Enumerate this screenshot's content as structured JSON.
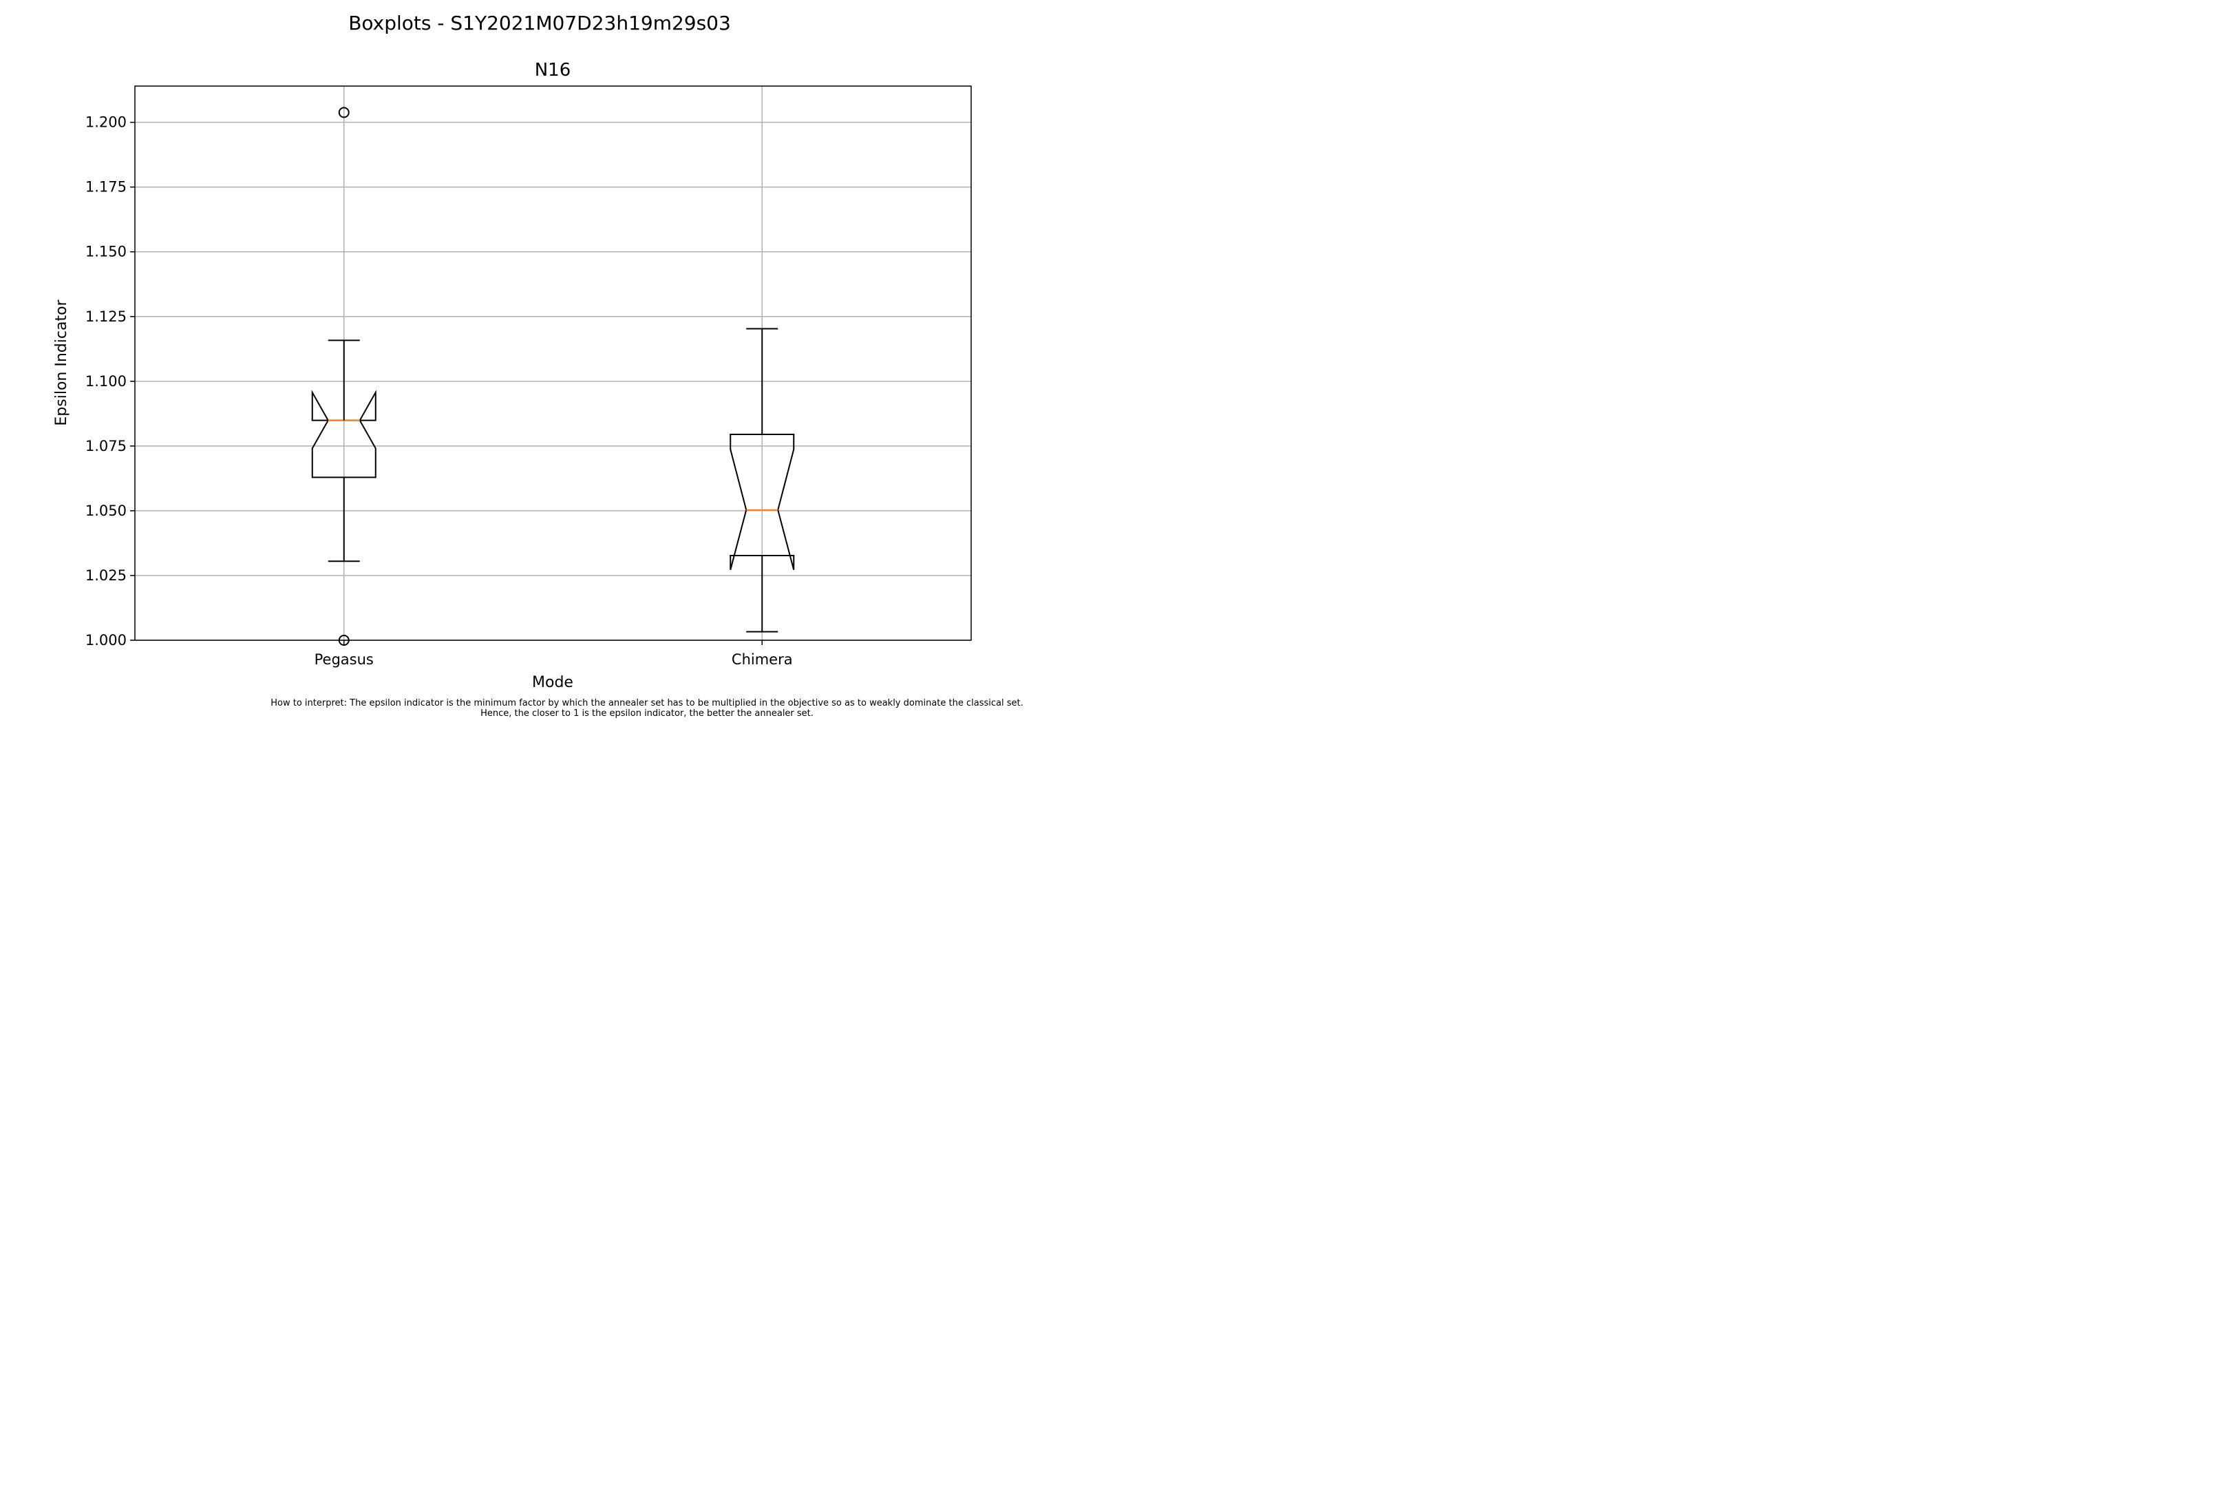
{
  "figure": {
    "suptitle": "Boxplots - S1Y2021M07D23h19m29s03",
    "note_line1": "How to interpret: The epsilon indicator is the minimum factor by which the annealer set has to be multiplied in the objective so as to weakly dominate the classical set.",
    "note_line2": "Hence, the closer to 1 is the epsilon indicator, the better the annealer set."
  },
  "chart_data": {
    "type": "boxplot",
    "title": "N16",
    "xlabel": "Mode",
    "ylabel": "Epsilon Indicator",
    "ylim": [
      1.0,
      1.214
    ],
    "yticks": [
      1.0,
      1.025,
      1.05,
      1.075,
      1.1,
      1.125,
      1.15,
      1.175,
      1.2
    ],
    "ytick_labels": [
      "1.000",
      "1.025",
      "1.050",
      "1.075",
      "1.100",
      "1.125",
      "1.150",
      "1.175",
      "1.200"
    ],
    "grid": true,
    "notched": true,
    "colors": {
      "box": "#000000",
      "median": "#ff7f0e",
      "grid": "#b0b0b0"
    },
    "categories": [
      "Pegasus",
      "Chimera"
    ],
    "boxes": [
      {
        "label": "Pegasus",
        "whisker_low": 1.0305,
        "q1": 1.0629,
        "median": 1.0849,
        "q3": 1.0849,
        "whisker_high": 1.1158,
        "notch_low": 1.0741,
        "notch_high": 1.0957,
        "outliers": [
          1.2038,
          1.0
        ]
      },
      {
        "label": "Chimera",
        "whisker_low": 1.0033,
        "q1": 1.0327,
        "median": 1.0503,
        "q3": 1.0795,
        "whisker_high": 1.1203,
        "notch_low": 1.0272,
        "notch_high": 1.0737,
        "outliers": []
      }
    ]
  }
}
